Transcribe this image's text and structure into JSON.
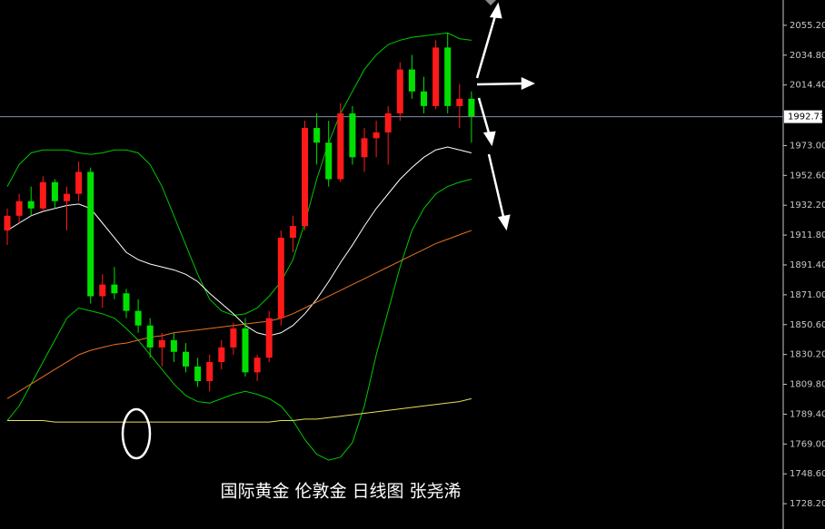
{
  "chart_data": {
    "type": "candlestick",
    "title": "国际黄金 伦敦金 日线图 张尧浠",
    "up_color": "#ff1a1a",
    "down_color": "#00e000",
    "ylim": [
      1710.9,
      2072.5
    ],
    "yticks": [
      {
        "value": 2055.2,
        "label": "2055.20"
      },
      {
        "value": 2034.8,
        "label": "2034.80"
      },
      {
        "value": 2014.4,
        "label": "2014.40"
      },
      {
        "value": 1973.0,
        "label": "1973.00"
      },
      {
        "value": 1952.6,
        "label": "1952.60"
      },
      {
        "value": 1932.2,
        "label": "1932.20"
      },
      {
        "value": 1911.8,
        "label": "1911.80"
      },
      {
        "value": 1891.4,
        "label": "1891.40"
      },
      {
        "value": 1871.0,
        "label": "1871.00"
      },
      {
        "value": 1850.6,
        "label": "1850.60"
      },
      {
        "value": 1830.2,
        "label": "1830.20"
      },
      {
        "value": 1809.8,
        "label": "1809.80"
      },
      {
        "value": 1789.4,
        "label": "1789.40"
      },
      {
        "value": 1769.0,
        "label": "1769.00"
      },
      {
        "value": 1748.6,
        "label": "1748.60"
      },
      {
        "value": 1728.2,
        "label": "1728.20"
      }
    ],
    "current_price": {
      "value": 1992.73,
      "label": "1992.73"
    },
    "candles": [
      {
        "open": 1915,
        "high": 1930,
        "low": 1905,
        "close": 1925
      },
      {
        "open": 1925,
        "high": 1940,
        "low": 1920,
        "close": 1935
      },
      {
        "open": 1935,
        "high": 1945,
        "low": 1925,
        "close": 1930
      },
      {
        "open": 1930,
        "high": 1952,
        "low": 1928,
        "close": 1948
      },
      {
        "open": 1948,
        "high": 1950,
        "low": 1930,
        "close": 1935
      },
      {
        "open": 1935,
        "high": 1945,
        "low": 1915,
        "close": 1940
      },
      {
        "open": 1940,
        "high": 1962,
        "low": 1935,
        "close": 1955
      },
      {
        "open": 1955,
        "high": 1958,
        "low": 1865,
        "close": 1870
      },
      {
        "open": 1870,
        "high": 1885,
        "low": 1862,
        "close": 1878
      },
      {
        "open": 1878,
        "high": 1890,
        "low": 1868,
        "close": 1872
      },
      {
        "open": 1872,
        "high": 1875,
        "low": 1855,
        "close": 1860
      },
      {
        "open": 1860,
        "high": 1868,
        "low": 1845,
        "close": 1850
      },
      {
        "open": 1850,
        "high": 1855,
        "low": 1828,
        "close": 1835
      },
      {
        "open": 1835,
        "high": 1845,
        "low": 1822,
        "close": 1840
      },
      {
        "open": 1840,
        "high": 1845,
        "low": 1825,
        "close": 1832
      },
      {
        "open": 1832,
        "high": 1838,
        "low": 1818,
        "close": 1822
      },
      {
        "open": 1822,
        "high": 1828,
        "low": 1808,
        "close": 1812
      },
      {
        "open": 1812,
        "high": 1830,
        "low": 1805,
        "close": 1825
      },
      {
        "open": 1825,
        "high": 1840,
        "low": 1820,
        "close": 1835
      },
      {
        "open": 1835,
        "high": 1852,
        "low": 1830,
        "close": 1848
      },
      {
        "open": 1848,
        "high": 1855,
        "low": 1815,
        "close": 1818
      },
      {
        "open": 1818,
        "high": 1830,
        "low": 1812,
        "close": 1828
      },
      {
        "open": 1828,
        "high": 1860,
        "low": 1825,
        "close": 1855
      },
      {
        "open": 1855,
        "high": 1915,
        "low": 1850,
        "close": 1910
      },
      {
        "open": 1910,
        "high": 1925,
        "low": 1900,
        "close": 1918
      },
      {
        "open": 1918,
        "high": 1990,
        "low": 1915,
        "close": 1985
      },
      {
        "open": 1985,
        "high": 1995,
        "low": 1960,
        "close": 1975
      },
      {
        "open": 1975,
        "high": 1990,
        "low": 1945,
        "close": 1950
      },
      {
        "open": 1950,
        "high": 2002,
        "low": 1948,
        "close": 1995
      },
      {
        "open": 1995,
        "high": 2000,
        "low": 1960,
        "close": 1965
      },
      {
        "open": 1965,
        "high": 1985,
        "low": 1955,
        "close": 1978
      },
      {
        "open": 1978,
        "high": 1990,
        "low": 1965,
        "close": 1982
      },
      {
        "open": 1982,
        "high": 2000,
        "low": 1960,
        "close": 1995
      },
      {
        "open": 1995,
        "high": 2030,
        "low": 1990,
        "close": 2025
      },
      {
        "open": 2025,
        "high": 2035,
        "low": 2005,
        "close": 2010
      },
      {
        "open": 2010,
        "high": 2020,
        "low": 1995,
        "close": 2000
      },
      {
        "open": 2000,
        "high": 2045,
        "low": 1998,
        "close": 2040
      },
      {
        "open": 2040,
        "high": 2050,
        "low": 1995,
        "close": 2000
      },
      {
        "open": 2000,
        "high": 2015,
        "low": 1985,
        "close": 2005
      },
      {
        "open": 2005,
        "high": 2010,
        "low": 1975,
        "close": 1993
      }
    ],
    "series": [
      {
        "color": "#00c800",
        "values": [
          1945,
          1960,
          1968,
          1970,
          1970,
          1970,
          1968,
          1967,
          1968,
          1970,
          1970,
          1968,
          1960,
          1945,
          1925,
          1905,
          1885,
          1868,
          1860,
          1857,
          1858,
          1862,
          1870,
          1880,
          1895,
          1920,
          1950,
          1975,
          1995,
          2010,
          2025,
          2035,
          2042,
          2045,
          2047,
          2048,
          2049,
          2050,
          2046,
          2045
        ]
      },
      {
        "color": "#ffffff",
        "values": [
          1915,
          1920,
          1925,
          1928,
          1930,
          1932,
          1933,
          1930,
          1920,
          1910,
          1900,
          1895,
          1892,
          1890,
          1888,
          1885,
          1880,
          1872,
          1865,
          1858,
          1850,
          1845,
          1843,
          1845,
          1850,
          1858,
          1868,
          1880,
          1893,
          1905,
          1918,
          1930,
          1940,
          1950,
          1958,
          1965,
          1970,
          1972,
          1970,
          1968
        ]
      },
      {
        "color": "#00c800",
        "values": [
          1785,
          1795,
          1810,
          1825,
          1840,
          1855,
          1862,
          1860,
          1858,
          1855,
          1848,
          1840,
          1830,
          1820,
          1810,
          1802,
          1798,
          1797,
          1800,
          1803,
          1805,
          1803,
          1800,
          1795,
          1785,
          1772,
          1762,
          1758,
          1760,
          1770,
          1795,
          1830,
          1860,
          1890,
          1915,
          1930,
          1940,
          1945,
          1948,
          1950
        ]
      },
      {
        "color": "#e8731e",
        "values": [
          1800,
          1805,
          1810,
          1815,
          1820,
          1825,
          1830,
          1833,
          1835,
          1837,
          1838,
          1840,
          1842,
          1843,
          1845,
          1846,
          1847,
          1848,
          1849,
          1850,
          1851,
          1852,
          1853,
          1855,
          1858,
          1862,
          1866,
          1870,
          1874,
          1878,
          1882,
          1886,
          1890,
          1894,
          1898,
          1902,
          1906,
          1909,
          1912,
          1915
        ]
      },
      {
        "color": "#e8e060",
        "values": [
          1785,
          1785,
          1785,
          1785,
          1784,
          1784,
          1784,
          1784,
          1784,
          1784,
          1784,
          1784,
          1784,
          1784,
          1784,
          1784,
          1784,
          1784,
          1784,
          1784,
          1784,
          1784,
          1784,
          1785,
          1785,
          1786,
          1786,
          1787,
          1788,
          1789,
          1790,
          1791,
          1792,
          1793,
          1794,
          1795,
          1796,
          1797,
          1798,
          1800
        ]
      }
    ]
  }
}
